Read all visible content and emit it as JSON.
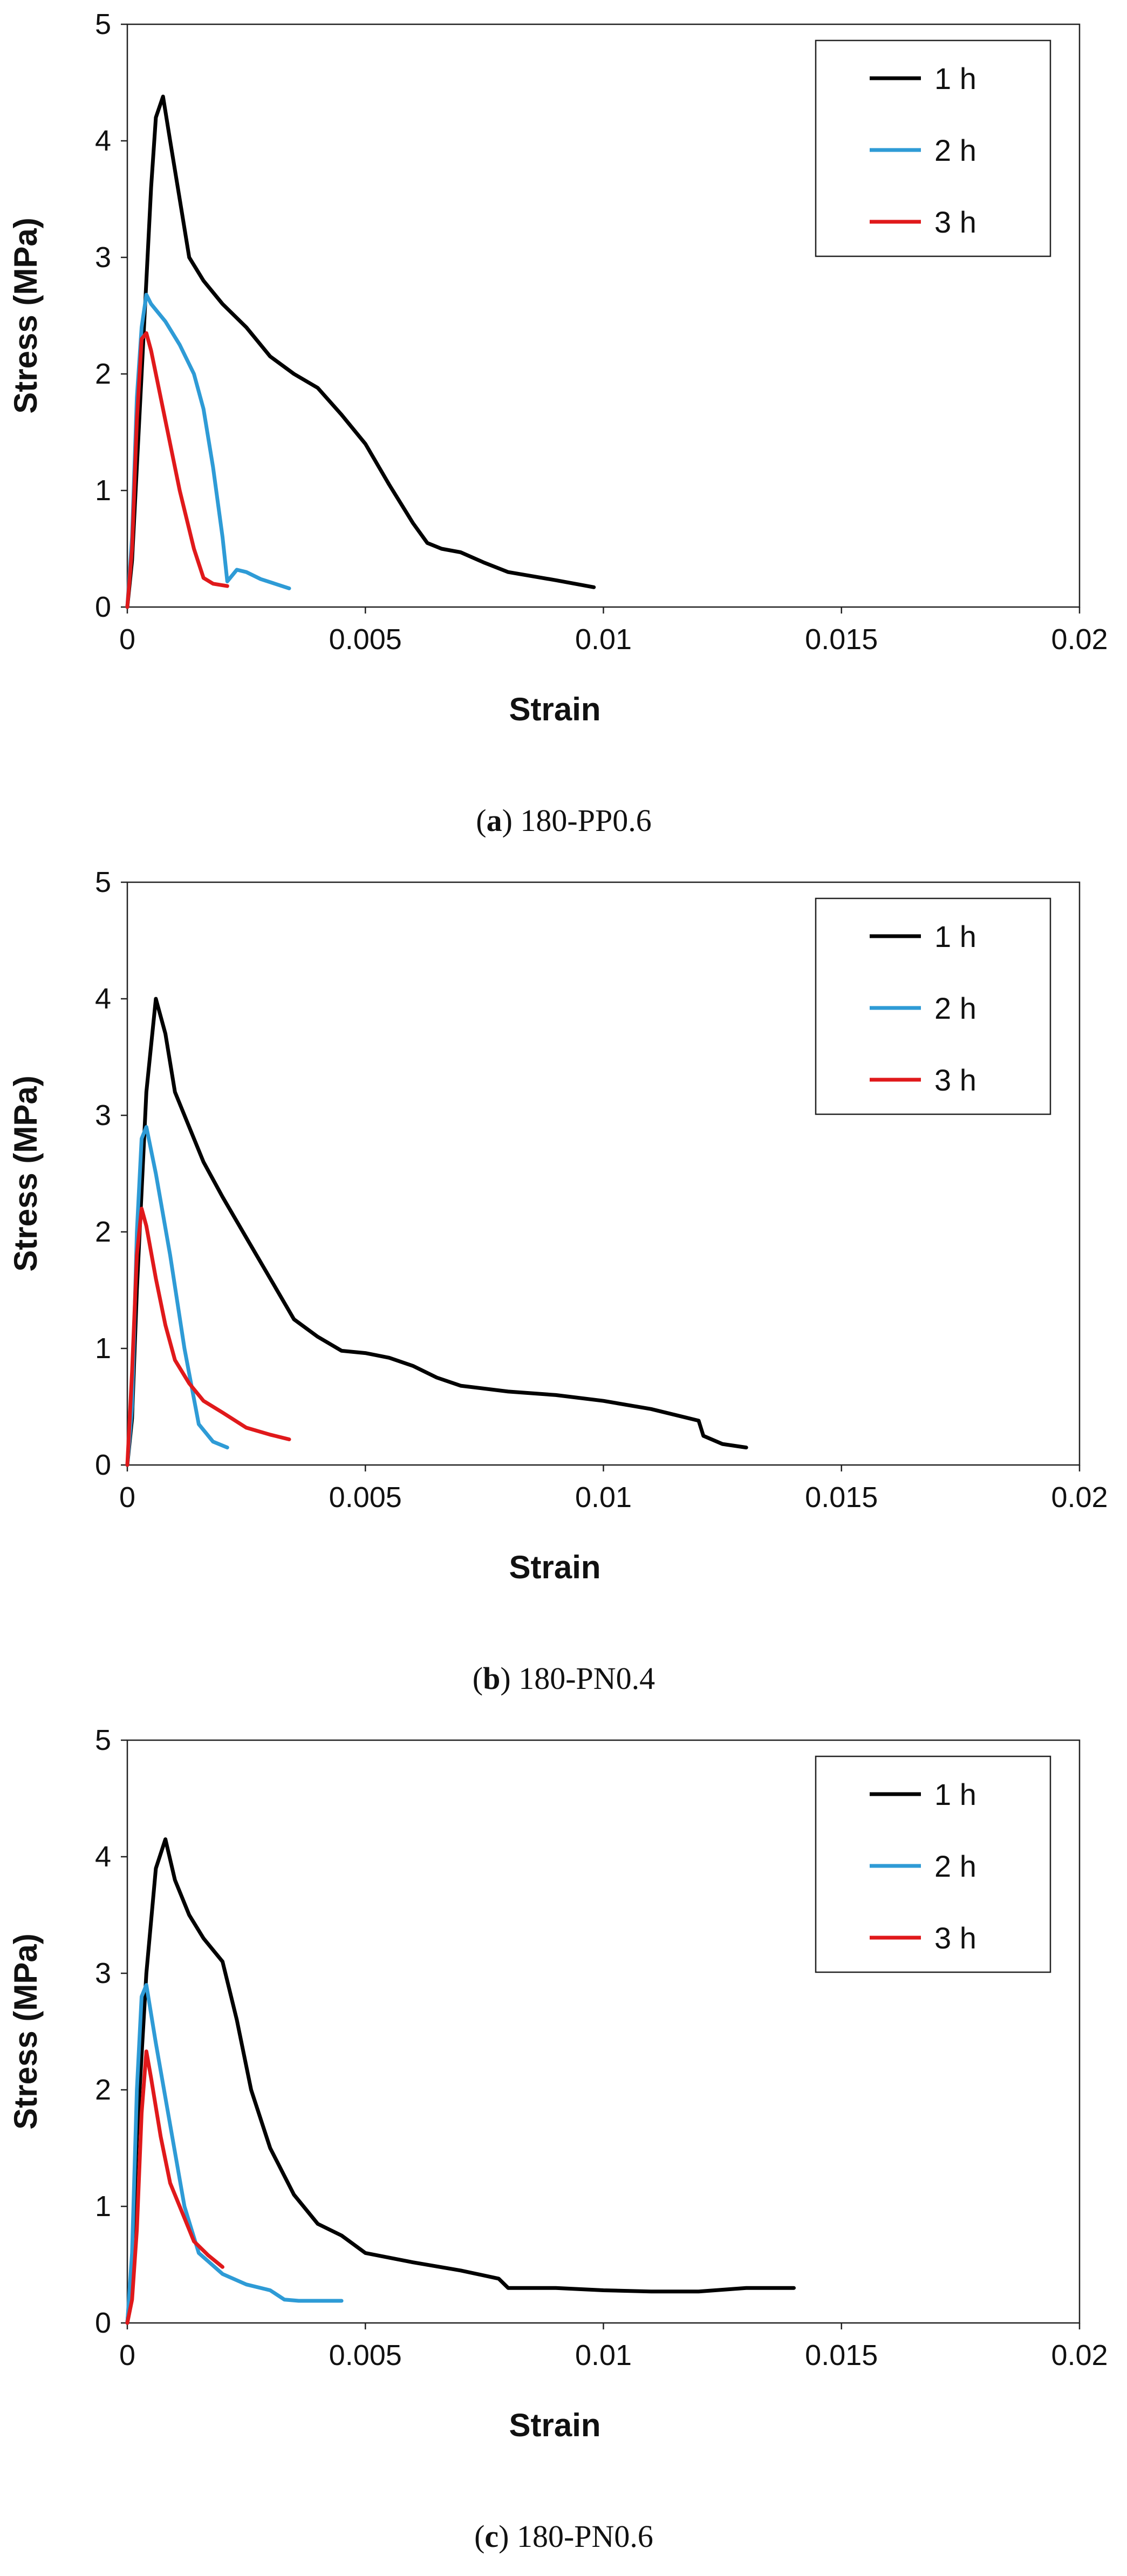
{
  "figure": {
    "panels": [
      {
        "caption_letter": "a",
        "caption_text": "180-PP0.6"
      },
      {
        "caption_letter": "b",
        "caption_text": "180-PN0.4"
      },
      {
        "caption_letter": "c",
        "caption_text": "180-PN0.6"
      }
    ]
  },
  "chart_data": [
    {
      "type": "line",
      "title": "",
      "xlabel": "Strain",
      "ylabel": "Stress (MPa)",
      "xlim": [
        0,
        0.02
      ],
      "ylim": [
        0,
        5
      ],
      "x_ticks": [
        0,
        0.005,
        0.01,
        0.015,
        0.02
      ],
      "x_tick_labels": [
        "0",
        "0.005",
        "0.01",
        "0.015",
        "0.02"
      ],
      "y_ticks": [
        0,
        1,
        2,
        3,
        4,
        5
      ],
      "y_tick_labels": [
        "0",
        "1",
        "2",
        "3",
        "4",
        "5"
      ],
      "grid": false,
      "legend_position": "top-right",
      "series": [
        {
          "name": "1 h",
          "color": "#000000",
          "points": [
            [
              0,
              0
            ],
            [
              0.0001,
              0.4
            ],
            [
              0.0003,
              2.0
            ],
            [
              0.0005,
              3.6
            ],
            [
              0.0006,
              4.2
            ],
            [
              0.00075,
              4.38
            ],
            [
              0.0009,
              4.0
            ],
            [
              0.0011,
              3.5
            ],
            [
              0.0013,
              3.0
            ],
            [
              0.0016,
              2.8
            ],
            [
              0.002,
              2.6
            ],
            [
              0.0025,
              2.4
            ],
            [
              0.003,
              2.15
            ],
            [
              0.0035,
              2.0
            ],
            [
              0.004,
              1.88
            ],
            [
              0.0045,
              1.65
            ],
            [
              0.005,
              1.4
            ],
            [
              0.0055,
              1.05
            ],
            [
              0.006,
              0.72
            ],
            [
              0.0063,
              0.55
            ],
            [
              0.0066,
              0.5
            ],
            [
              0.007,
              0.47
            ],
            [
              0.0075,
              0.38
            ],
            [
              0.008,
              0.3
            ],
            [
              0.009,
              0.23
            ],
            [
              0.0098,
              0.17
            ]
          ]
        },
        {
          "name": "2 h",
          "color": "#2e9bd6",
          "points": [
            [
              0,
              0
            ],
            [
              0.0001,
              0.6
            ],
            [
              0.0002,
              1.8
            ],
            [
              0.0003,
              2.4
            ],
            [
              0.0004,
              2.68
            ],
            [
              0.0005,
              2.6
            ],
            [
              0.0008,
              2.45
            ],
            [
              0.0011,
              2.25
            ],
            [
              0.0014,
              2.0
            ],
            [
              0.0016,
              1.7
            ],
            [
              0.0018,
              1.2
            ],
            [
              0.002,
              0.6
            ],
            [
              0.0021,
              0.22
            ],
            [
              0.0023,
              0.32
            ],
            [
              0.0025,
              0.3
            ],
            [
              0.0028,
              0.24
            ],
            [
              0.0031,
              0.2
            ],
            [
              0.0034,
              0.16
            ]
          ]
        },
        {
          "name": "3 h",
          "color": "#e0191b",
          "points": [
            [
              0,
              0
            ],
            [
              0.0001,
              0.5
            ],
            [
              0.0002,
              1.6
            ],
            [
              0.0003,
              2.3
            ],
            [
              0.0004,
              2.35
            ],
            [
              0.0005,
              2.2
            ],
            [
              0.0008,
              1.6
            ],
            [
              0.0011,
              1.0
            ],
            [
              0.0014,
              0.5
            ],
            [
              0.0016,
              0.25
            ],
            [
              0.0018,
              0.2
            ],
            [
              0.0021,
              0.18
            ]
          ]
        }
      ]
    },
    {
      "type": "line",
      "title": "",
      "xlabel": "Strain",
      "ylabel": "Stress (MPa)",
      "xlim": [
        0,
        0.02
      ],
      "ylim": [
        0,
        5
      ],
      "x_ticks": [
        0,
        0.005,
        0.01,
        0.015,
        0.02
      ],
      "x_tick_labels": [
        "0",
        "0.005",
        "0.01",
        "0.015",
        "0.02"
      ],
      "y_ticks": [
        0,
        1,
        2,
        3,
        4,
        5
      ],
      "y_tick_labels": [
        "0",
        "1",
        "2",
        "3",
        "4",
        "5"
      ],
      "grid": false,
      "legend_position": "top-right",
      "series": [
        {
          "name": "1 h",
          "color": "#000000",
          "points": [
            [
              0,
              0
            ],
            [
              0.0001,
              0.4
            ],
            [
              0.0002,
              1.5
            ],
            [
              0.0004,
              3.2
            ],
            [
              0.0006,
              4.0
            ],
            [
              0.0008,
              3.7
            ],
            [
              0.001,
              3.2
            ],
            [
              0.0013,
              2.9
            ],
            [
              0.0016,
              2.6
            ],
            [
              0.002,
              2.3
            ],
            [
              0.0025,
              1.95
            ],
            [
              0.003,
              1.6
            ],
            [
              0.0035,
              1.25
            ],
            [
              0.004,
              1.1
            ],
            [
              0.0045,
              0.98
            ],
            [
              0.005,
              0.96
            ],
            [
              0.0055,
              0.92
            ],
            [
              0.006,
              0.85
            ],
            [
              0.0065,
              0.75
            ],
            [
              0.007,
              0.68
            ],
            [
              0.008,
              0.63
            ],
            [
              0.009,
              0.6
            ],
            [
              0.01,
              0.55
            ],
            [
              0.011,
              0.48
            ],
            [
              0.012,
              0.38
            ],
            [
              0.0121,
              0.25
            ],
            [
              0.0125,
              0.18
            ],
            [
              0.013,
              0.15
            ]
          ]
        },
        {
          "name": "2 h",
          "color": "#2e9bd6",
          "points": [
            [
              0,
              0
            ],
            [
              0.0001,
              0.5
            ],
            [
              0.0002,
              2.0
            ],
            [
              0.0003,
              2.8
            ],
            [
              0.0004,
              2.9
            ],
            [
              0.0006,
              2.5
            ],
            [
              0.0009,
              1.8
            ],
            [
              0.0012,
              1.0
            ],
            [
              0.0015,
              0.35
            ],
            [
              0.0018,
              0.2
            ],
            [
              0.0021,
              0.15
            ]
          ]
        },
        {
          "name": "3 h",
          "color": "#e0191b",
          "points": [
            [
              0,
              0
            ],
            [
              0.0001,
              0.8
            ],
            [
              0.0002,
              1.8
            ],
            [
              0.0003,
              2.2
            ],
            [
              0.0004,
              2.05
            ],
            [
              0.0006,
              1.6
            ],
            [
              0.0008,
              1.2
            ],
            [
              0.001,
              0.9
            ],
            [
              0.0013,
              0.7
            ],
            [
              0.0016,
              0.55
            ],
            [
              0.002,
              0.45
            ],
            [
              0.0025,
              0.32
            ],
            [
              0.003,
              0.26
            ],
            [
              0.0034,
              0.22
            ]
          ]
        }
      ]
    },
    {
      "type": "line",
      "title": "",
      "xlabel": "Strain",
      "ylabel": "Stress (MPa)",
      "xlim": [
        0,
        0.02
      ],
      "ylim": [
        0,
        5
      ],
      "x_ticks": [
        0,
        0.005,
        0.01,
        0.015,
        0.02
      ],
      "x_tick_labels": [
        "0",
        "0.005",
        "0.01",
        "0.015",
        "0.02"
      ],
      "y_ticks": [
        0,
        1,
        2,
        3,
        4,
        5
      ],
      "y_tick_labels": [
        "0",
        "1",
        "2",
        "3",
        "4",
        "5"
      ],
      "grid": false,
      "legend_position": "top-right",
      "series": [
        {
          "name": "1 h",
          "color": "#000000",
          "points": [
            [
              0,
              0
            ],
            [
              0.0001,
              0.5
            ],
            [
              0.0002,
              1.6
            ],
            [
              0.0004,
              3.0
            ],
            [
              0.0006,
              3.9
            ],
            [
              0.0008,
              4.15
            ],
            [
              0.001,
              3.8
            ],
            [
              0.0013,
              3.5
            ],
            [
              0.0016,
              3.3
            ],
            [
              0.002,
              3.1
            ],
            [
              0.0023,
              2.6
            ],
            [
              0.0026,
              2.0
            ],
            [
              0.003,
              1.5
            ],
            [
              0.0035,
              1.1
            ],
            [
              0.004,
              0.85
            ],
            [
              0.0045,
              0.75
            ],
            [
              0.005,
              0.6
            ],
            [
              0.006,
              0.52
            ],
            [
              0.007,
              0.45
            ],
            [
              0.0078,
              0.38
            ],
            [
              0.008,
              0.3
            ],
            [
              0.009,
              0.3
            ],
            [
              0.01,
              0.28
            ],
            [
              0.011,
              0.27
            ],
            [
              0.012,
              0.27
            ],
            [
              0.013,
              0.3
            ],
            [
              0.014,
              0.3
            ]
          ]
        },
        {
          "name": "2 h",
          "color": "#2e9bd6",
          "points": [
            [
              0,
              0
            ],
            [
              0.0001,
              0.6
            ],
            [
              0.0002,
              2.0
            ],
            [
              0.0003,
              2.8
            ],
            [
              0.0004,
              2.9
            ],
            [
              0.0006,
              2.4
            ],
            [
              0.0009,
              1.7
            ],
            [
              0.0012,
              1.0
            ],
            [
              0.0015,
              0.6
            ],
            [
              0.002,
              0.42
            ],
            [
              0.0025,
              0.33
            ],
            [
              0.003,
              0.28
            ],
            [
              0.0033,
              0.2
            ],
            [
              0.0036,
              0.19
            ],
            [
              0.004,
              0.19
            ],
            [
              0.0045,
              0.19
            ]
          ]
        },
        {
          "name": "3 h",
          "color": "#e0191b",
          "points": [
            [
              0,
              0
            ],
            [
              0.0001,
              0.2
            ],
            [
              0.0002,
              0.8
            ],
            [
              0.0003,
              1.8
            ],
            [
              0.0004,
              2.33
            ],
            [
              0.0005,
              2.1
            ],
            [
              0.0007,
              1.6
            ],
            [
              0.0009,
              1.2
            ],
            [
              0.0012,
              0.9
            ],
            [
              0.0014,
              0.7
            ],
            [
              0.0017,
              0.58
            ],
            [
              0.002,
              0.48
            ]
          ]
        }
      ]
    }
  ]
}
